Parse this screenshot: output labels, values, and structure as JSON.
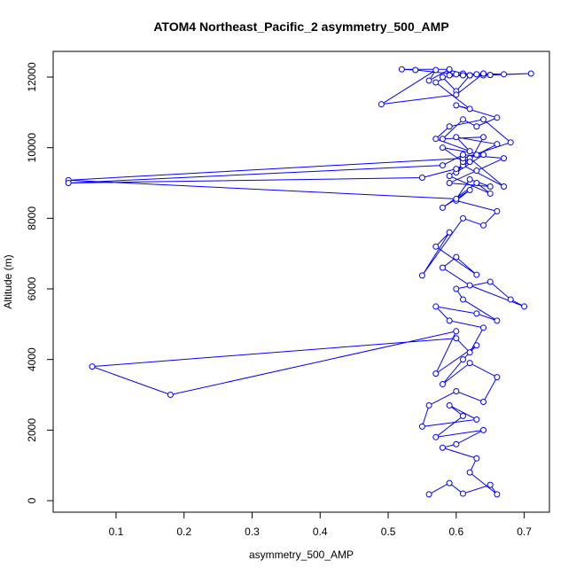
{
  "chart_data": {
    "type": "line",
    "title": "ATOM4 Northeast_Pacific_2 asymmetry_500_AMP",
    "xlabel": "asymmetry_500_AMP",
    "ylabel": "Altitude (m)",
    "color": "#0000ff",
    "xlim": [
      0.0076,
      0.737
    ],
    "ylim": [
      -326,
      12728
    ],
    "xticks": [
      0.1,
      0.2,
      0.3,
      0.4,
      0.5,
      0.6,
      0.7
    ],
    "yticks": [
      0,
      2000,
      4000,
      6000,
      8000,
      10000,
      12000
    ],
    "x": [
      0.56,
      0.59,
      0.61,
      0.65,
      0.66,
      0.62,
      0.63,
      0.58,
      0.6,
      0.64,
      0.57,
      0.61,
      0.59,
      0.63,
      0.55,
      0.56,
      0.6,
      0.64,
      0.66,
      0.62,
      0.58,
      0.61,
      0.63,
      0.57,
      0.6,
      0.18,
      0.065,
      0.6,
      0.62,
      0.64,
      0.59,
      0.57,
      0.63,
      0.66,
      0.61,
      0.6,
      0.65,
      0.68,
      0.7,
      0.62,
      0.58,
      0.6,
      0.63,
      0.57,
      0.59,
      0.55,
      0.61,
      0.64,
      0.66,
      0.6,
      0.62,
      0.58,
      0.63,
      0.65,
      0.59,
      0.61,
      0.67,
      0.62,
      0.6,
      0.64,
      0.58,
      0.61,
      0.63,
      0.66,
      0.6,
      0.62,
      0.57,
      0.59,
      0.64,
      0.68,
      0.61,
      0.03,
      0.6,
      0.62,
      0.65,
      0.59,
      0.63,
      0.67,
      0.61,
      0.58,
      0.03,
      0.55,
      0.6,
      0.62,
      0.64,
      0.58,
      0.61,
      0.63,
      0.66,
      0.6,
      0.62,
      0.57,
      0.59,
      0.64,
      0.71,
      0.62,
      0.6,
      0.58,
      0.63,
      0.65,
      0.61,
      0.59,
      0.62,
      0.64,
      0.6,
      0.49,
      0.57,
      0.56,
      0.59,
      0.52,
      0.54,
      0.6,
      0.62,
      0.63,
      0.65,
      0.67,
      0.64,
      0.61
    ],
    "values": [
      180,
      500,
      200,
      450,
      180,
      800,
      1200,
      1500,
      1600,
      2000,
      1800,
      2400,
      2700,
      2300,
      2100,
      2700,
      3100,
      2800,
      3500,
      3900,
      3300,
      4000,
      4400,
      3600,
      4800,
      3000,
      3800,
      4600,
      4200,
      4900,
      5100,
      5500,
      5300,
      5100,
      5700,
      6000,
      6200,
      5700,
      5500,
      6100,
      6600,
      6900,
      6400,
      7200,
      7600,
      6380,
      8000,
      7800,
      8200,
      8500,
      8800,
      8300,
      9000,
      8700,
      9200,
      9500,
      8900,
      9700,
      9300,
      9800,
      10000,
      9600,
      9800,
      10100,
      10300,
      9900,
      10250,
      10600,
      10800,
      10150,
      9700,
      9080,
      8550,
      9100,
      8900,
      9000,
      9350,
      9700,
      9800,
      9500,
      9000,
      9150,
      9400,
      9600,
      10300,
      10250,
      10800,
      10600,
      10850,
      11200,
      11100,
      11850,
      12050,
      12050,
      12100,
      12050,
      11600,
      12000,
      12080,
      12060,
      12100,
      12200,
      12050,
      12100,
      11500,
      11230,
      12200,
      11900,
      12220,
      12220,
      12200,
      12080,
      12050,
      12080,
      12060,
      12080,
      12100,
      12050
    ]
  }
}
